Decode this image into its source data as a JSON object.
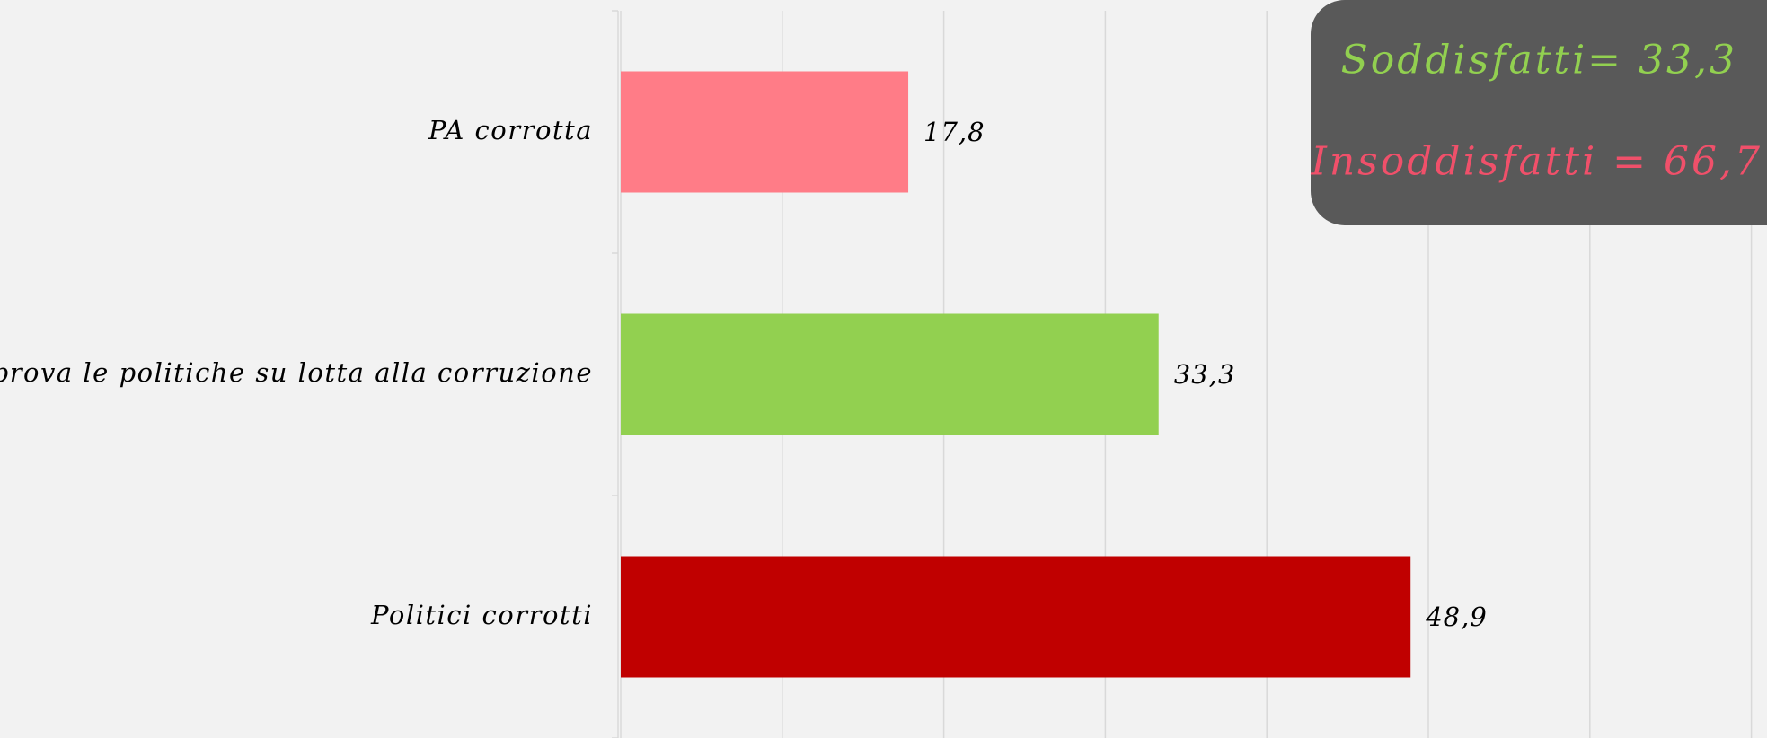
{
  "chart_data": {
    "type": "bar",
    "orientation": "horizontal",
    "categories": [
      "PA corrotta",
      "Approva le politiche su lotta alla corruzione",
      "Politici corrotti"
    ],
    "values": [
      17.8,
      33.3,
      48.9
    ],
    "value_labels": [
      "17,8",
      "33,3",
      "48,9"
    ],
    "colors": [
      "#ff7c87",
      "#92d050",
      "#c00000"
    ],
    "xlim": [
      0,
      70
    ],
    "xticks": [
      0,
      10,
      20,
      30,
      40,
      50,
      60,
      70
    ],
    "grid": true,
    "annotations": [
      {
        "text": "Soddisfatti= 33,3",
        "color": "#92d050"
      },
      {
        "text": "Insoddisfatti = 66,7",
        "color": "#f0506a"
      }
    ]
  }
}
